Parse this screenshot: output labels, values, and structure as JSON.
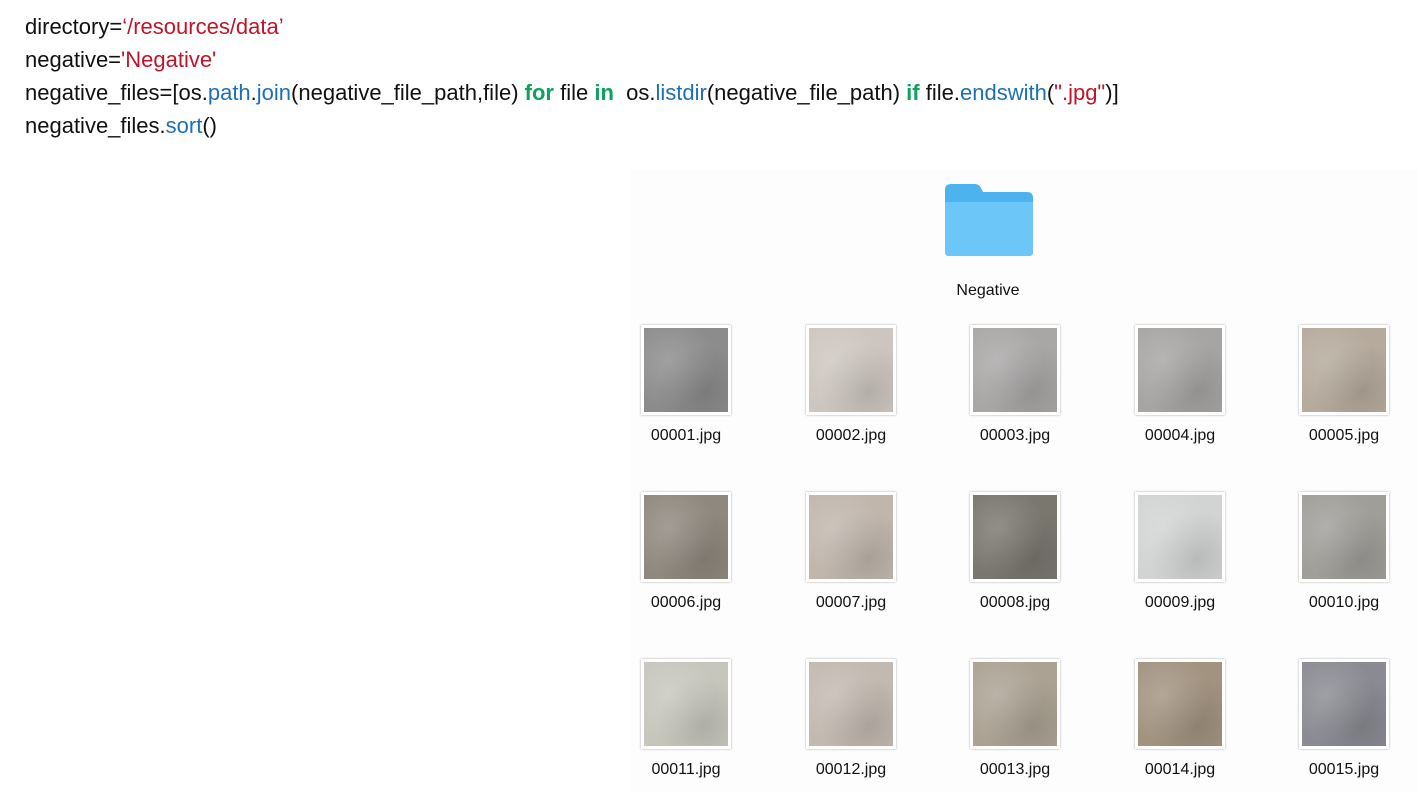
{
  "code": {
    "lines": [
      [
        {
          "text": "directory=",
          "color": "#111111"
        },
        {
          "text": "‘/resources/data’",
          "color": "#c0142a"
        }
      ],
      [
        {
          "text": "negative=",
          "color": "#111111"
        },
        {
          "text": "'Negative'",
          "color": "#c0142a"
        }
      ],
      [
        {
          "text": "negative_files=[os.",
          "color": "#111111"
        },
        {
          "text": "path",
          "color": "#1f6fb5"
        },
        {
          "text": ".",
          "color": "#111111"
        },
        {
          "text": "join",
          "color": "#1f6fb5"
        },
        {
          "text": "(negative_file_path,file) ",
          "color": "#111111"
        },
        {
          "text": "for",
          "color": "#10a060",
          "bold": true
        },
        {
          "text": " file ",
          "color": "#111111"
        },
        {
          "text": "in",
          "color": "#10a060",
          "bold": true
        },
        {
          "text": "  os.",
          "color": "#111111"
        },
        {
          "text": "listdir",
          "color": "#1f6fb5"
        },
        {
          "text": "(negative_file_path) ",
          "color": "#111111"
        },
        {
          "text": "if",
          "color": "#10a060",
          "bold": true
        },
        {
          "text": " file.",
          "color": "#111111"
        },
        {
          "text": "endswith",
          "color": "#1f6fb5"
        },
        {
          "text": "(",
          "color": "#111111"
        },
        {
          "text": "\".jpg\"",
          "color": "#c0142a"
        },
        {
          "text": ")]",
          "color": "#111111"
        }
      ],
      [
        {
          "text": "negative_files.",
          "color": "#111111"
        },
        {
          "text": "sort",
          "color": "#1f6fb5"
        },
        {
          "text": "()",
          "color": "#111111"
        }
      ]
    ]
  },
  "folder": {
    "label": "Negative"
  },
  "files": [
    "00001.jpg",
    "00002.jpg",
    "00003.jpg",
    "00004.jpg",
    "00005.jpg",
    "00006.jpg",
    "00007.jpg",
    "00008.jpg",
    "00009.jpg",
    "00010.jpg",
    "00011.jpg",
    "00012.jpg",
    "00013.jpg",
    "00014.jpg",
    "00015.jpg"
  ]
}
